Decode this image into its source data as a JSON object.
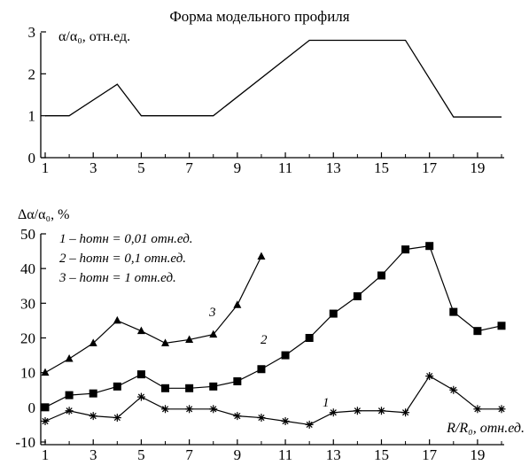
{
  "chart_data": [
    {
      "type": "line",
      "title": "Форма модельного профиля",
      "ylabel": "α/α₀, отн.ед.",
      "xlim": [
        1,
        20
      ],
      "ylim": [
        0,
        3
      ],
      "xticks": [
        "1",
        "3",
        "5",
        "7",
        "9",
        "11",
        "13",
        "15",
        "17",
        "19"
      ],
      "yticks": [
        "0",
        "1",
        "2",
        "3"
      ],
      "x": [
        1,
        2,
        4,
        5,
        8,
        12,
        16,
        18,
        20
      ],
      "series": [
        {
          "values": [
            1,
            1,
            1.75,
            1,
            1,
            2.8,
            2.8,
            0.97,
            0.97
          ]
        }
      ]
    },
    {
      "type": "line",
      "ylabel": "Δα/α₀, %",
      "xlabel": "R/R₀, отн.ед.",
      "xlim": [
        1,
        20
      ],
      "ylim": [
        -10,
        50
      ],
      "xticks": [
        "1",
        "3",
        "5",
        "7",
        "9",
        "11",
        "13",
        "15",
        "17",
        "19"
      ],
      "yticks": [
        "-10",
        "0",
        "10",
        "20",
        "30",
        "40",
        "50"
      ],
      "legend": [
        "1 – hотн = 0,01 отн.ед.",
        "2 – hотн = 0,1 отн.ед.",
        "3 – hотн = 1 отн.ед."
      ],
      "series": [
        {
          "name": "1",
          "marker": "star",
          "x": [
            1,
            2,
            3,
            4,
            5,
            6,
            7,
            8,
            9,
            10,
            11,
            12,
            13,
            14,
            15,
            16,
            17,
            18,
            19,
            20
          ],
          "values": [
            -4,
            -1,
            -2.5,
            -3,
            3,
            -0.5,
            -0.5,
            -0.5,
            -2.5,
            -3,
            -4,
            -5,
            -1.5,
            -1,
            -1,
            -1.5,
            9,
            5,
            -0.5,
            -0.5
          ]
        },
        {
          "name": "2",
          "marker": "square",
          "x": [
            1,
            2,
            3,
            4,
            5,
            6,
            7,
            8,
            9,
            10,
            11,
            12,
            13,
            14,
            15,
            16,
            17,
            18,
            19,
            20
          ],
          "values": [
            0,
            3.5,
            4,
            6,
            9.5,
            5.5,
            5.5,
            6,
            7.5,
            11,
            15,
            20,
            27,
            32,
            38,
            45.5,
            46.5,
            27.5,
            22,
            23.5
          ]
        },
        {
          "name": "3",
          "marker": "triangle",
          "x": [
            1,
            2,
            3,
            4,
            5,
            6,
            7,
            8,
            9,
            10
          ],
          "values": [
            10,
            14,
            18.5,
            25,
            22,
            18.5,
            19.5,
            21,
            29.5,
            43.5
          ]
        }
      ]
    }
  ]
}
